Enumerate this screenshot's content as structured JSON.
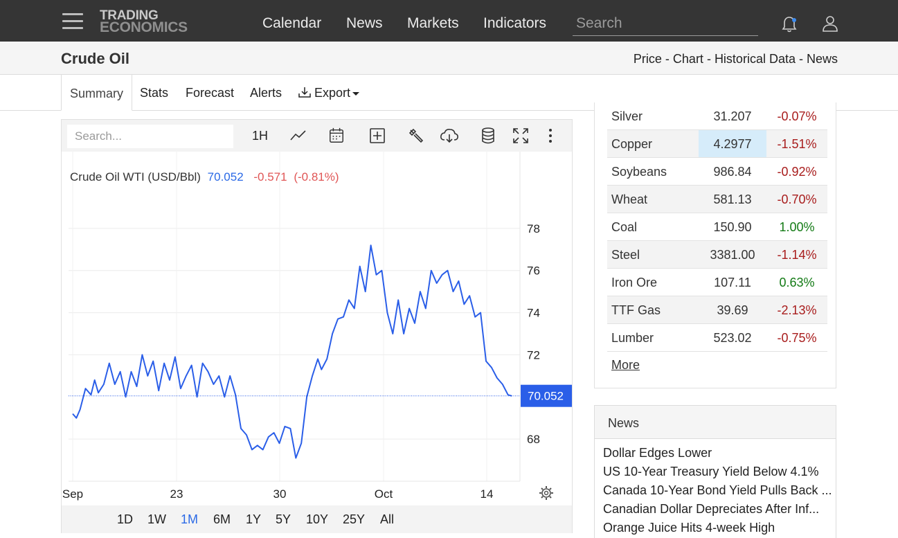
{
  "nav": {
    "logo_line1": "TRADING",
    "logo_line2": "ECONOMICS",
    "links": [
      "Calendar",
      "News",
      "Markets",
      "Indicators"
    ],
    "search_placeholder": "Search"
  },
  "header": {
    "title": "Crude Oil",
    "breadcrumb": [
      "Price",
      "Chart",
      "Historical Data",
      "News"
    ],
    "separator": " - "
  },
  "tabs": [
    {
      "label": "Summary",
      "active": true
    },
    {
      "label": "Stats"
    },
    {
      "label": "Forecast"
    },
    {
      "label": "Alerts"
    },
    {
      "label": "Export",
      "has_dropdown": true
    }
  ],
  "chart_toolbar": {
    "search_placeholder": "Search...",
    "interval": "1H",
    "icons": [
      "line-chart-icon",
      "calendar-icon",
      "add-indicator-icon",
      "wrench-icon",
      "cloud-download-icon",
      "database-icon",
      "fullscreen-icon",
      "more-vert-icon"
    ]
  },
  "chart_data": {
    "type": "line",
    "title": "Crude Oil WTI (USD/Bbl)",
    "last_value": "70.052",
    "change": "-0.571",
    "change_pct": "(-0.81%)",
    "price_tag": "70.052",
    "x_ticks": [
      "Sep",
      "23",
      "30",
      "Oct",
      "14"
    ],
    "y_ticks": [
      78,
      76,
      74,
      72,
      68
    ],
    "ylim": [
      66.0,
      80.0
    ],
    "x_range": [
      0,
      24
    ],
    "series": [
      {
        "color": "#2a5ee8",
        "x": [
          0,
          0.2,
          0.4,
          0.7,
          1.0,
          1.2,
          1.4,
          1.7,
          2.0,
          2.3,
          2.6,
          2.9,
          3.2,
          3.5,
          3.8,
          4.1,
          4.4,
          4.7,
          5.0,
          5.3,
          5.6,
          5.9,
          6.2,
          6.5,
          6.8,
          7.1,
          7.4,
          7.7,
          8.0,
          8.3,
          8.6,
          8.9,
          9.2,
          9.5,
          9.8,
          10.1,
          10.4,
          10.7,
          11.0,
          11.3,
          11.6,
          11.9,
          12.2,
          12.5,
          12.8,
          13.1,
          13.4,
          13.6,
          13.9,
          14.2,
          14.5,
          14.8,
          15.1,
          15.4,
          15.7,
          16.0,
          16.3,
          16.6,
          16.9,
          17.2,
          17.5,
          17.8,
          18.1,
          18.4,
          18.7,
          19.0,
          19.3,
          19.6,
          19.9,
          20.2,
          20.5,
          20.8,
          21.1,
          21.4,
          21.7,
          22.0,
          22.3,
          22.6,
          22.9,
          23.2,
          23.5,
          23.8,
          24.0
        ],
        "y": [
          69.2,
          69.0,
          69.4,
          70.4,
          70.1,
          70.8,
          70.2,
          70.6,
          71.6,
          70.6,
          71.2,
          70.0,
          71.2,
          70.5,
          72.0,
          71.0,
          71.7,
          70.3,
          71.6,
          70.8,
          71.9,
          70.4,
          71.0,
          71.5,
          70.0,
          71.6,
          71.2,
          70.6,
          71.0,
          70.0,
          71.0,
          70.1,
          68.5,
          68.2,
          67.5,
          67.7,
          67.5,
          68.1,
          68.3,
          67.8,
          68.6,
          68.5,
          67.1,
          67.8,
          70.0,
          71.0,
          71.8,
          71.3,
          71.8,
          73.0,
          73.7,
          73.8,
          74.6,
          74.2,
          76.2,
          75.0,
          77.2,
          75.8,
          76.0,
          74.0,
          73.0,
          74.6,
          73.0,
          74.2,
          73.5,
          75.0,
          74.2,
          76.0,
          75.4,
          75.8,
          76.0,
          75.0,
          75.5,
          74.4,
          74.8,
          73.8,
          74.0,
          71.7,
          71.4,
          70.9,
          70.6,
          70.1,
          70.05
        ]
      }
    ]
  },
  "range_buttons": [
    {
      "label": "1D"
    },
    {
      "label": "1W"
    },
    {
      "label": "1M",
      "active": true
    },
    {
      "label": "6M"
    },
    {
      "label": "1Y"
    },
    {
      "label": "5Y"
    },
    {
      "label": "10Y"
    },
    {
      "label": "25Y"
    },
    {
      "label": "All"
    }
  ],
  "commodities": [
    {
      "name": "Silver",
      "price": "31.207",
      "change": "-0.07%",
      "dir": "neg"
    },
    {
      "name": "Copper",
      "price": "4.2977",
      "change": "-1.51%",
      "dir": "neg",
      "highlight": true
    },
    {
      "name": "Soybeans",
      "price": "986.84",
      "change": "-0.92%",
      "dir": "neg"
    },
    {
      "name": "Wheat",
      "price": "581.13",
      "change": "-0.70%",
      "dir": "neg"
    },
    {
      "name": "Coal",
      "price": "150.90",
      "change": "1.00%",
      "dir": "pos"
    },
    {
      "name": "Steel",
      "price": "3381.00",
      "change": "-1.14%",
      "dir": "neg"
    },
    {
      "name": "Iron Ore",
      "price": "107.11",
      "change": "0.63%",
      "dir": "pos"
    },
    {
      "name": "TTF Gas",
      "price": "39.69",
      "change": "-2.13%",
      "dir": "neg"
    },
    {
      "name": "Lumber",
      "price": "523.02",
      "change": "-0.75%",
      "dir": "neg"
    }
  ],
  "more_label": "More",
  "news": {
    "title": "News",
    "items": [
      "Dollar Edges Lower",
      "US 10-Year Treasury Yield Below 4.1%",
      "Canada 10-Year Bond Yield Pulls Back ...",
      "Canadian Dollar Depreciates After Inf...",
      "Orange Juice Hits 4-week High"
    ]
  },
  "colors": {
    "nav_bg": "#353535",
    "accent_blue": "#2a69e6",
    "negative": "#a81c1c",
    "positive": "#127a14",
    "change_red": "#e05555",
    "highlight": "#d6ecfa"
  }
}
